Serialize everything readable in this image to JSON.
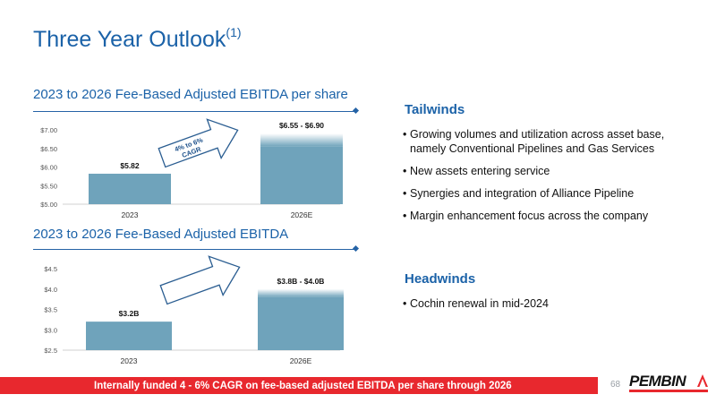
{
  "slide": {
    "title": "Three Year Outlook",
    "title_superscript": "(1)",
    "page_number": "68"
  },
  "colors": {
    "title_blue": "#1b62a8",
    "bar": "#6fa3bb",
    "footer_red": "#e8282e",
    "arrow_stroke": "#2a5d91"
  },
  "charts": {
    "per_share_title": "2023 to 2026 Fee-Based Adjusted EBITDA per share",
    "ebitda_title": "2023 to 2026 Fee-Based Adjusted EBITDA",
    "arrow_label_line1": "4% to 6%",
    "arrow_label_line2": "CAGR"
  },
  "chart_data": [
    {
      "type": "bar",
      "title": "2023 to 2026 Fee-Based Adjusted EBITDA per share",
      "categories": [
        "2023",
        "2026E"
      ],
      "values": [
        5.82,
        6.9
      ],
      "range_low": [
        5.82,
        6.55
      ],
      "data_labels": [
        "$5.82",
        "$6.55 - $6.90"
      ],
      "ylim": [
        5.0,
        7.0
      ],
      "yticks": [
        5.0,
        5.5,
        6.0,
        6.5,
        7.0
      ],
      "ytick_labels": [
        "$5.00",
        "$5.50",
        "$6.00",
        "$6.50",
        "$7.00"
      ],
      "grid": false,
      "annotation": "4% to 6% CAGR"
    },
    {
      "type": "bar",
      "title": "2023 to 2026 Fee-Based Adjusted EBITDA",
      "categories": [
        "2023",
        "2026E"
      ],
      "values": [
        3.2,
        4.0
      ],
      "range_low": [
        3.2,
        3.8
      ],
      "data_labels": [
        "$3.2B",
        "$3.8B - $4.0B"
      ],
      "ylim": [
        2.5,
        4.5
      ],
      "yticks": [
        2.5,
        3.0,
        3.5,
        4.0,
        4.5
      ],
      "ytick_labels": [
        "$2.5",
        "$3.0",
        "$3.5",
        "$4.0",
        "$4.5"
      ],
      "grid": false
    }
  ],
  "tailwinds": {
    "heading": "Tailwinds",
    "items": [
      "Growing volumes and utilization across asset base, namely Conventional Pipelines and Gas Services",
      "New assets entering service",
      "Synergies and integration of Alliance Pipeline",
      "Margin enhancement focus across the company"
    ]
  },
  "headwinds": {
    "heading": "Headwinds",
    "items": [
      "Cochin renewal in mid-2024"
    ]
  },
  "footer": {
    "text": "Internally funded 4 - 6% CAGR on fee-based adjusted EBITDA per share through 2026"
  },
  "logo": {
    "text": "PEMBINA"
  }
}
